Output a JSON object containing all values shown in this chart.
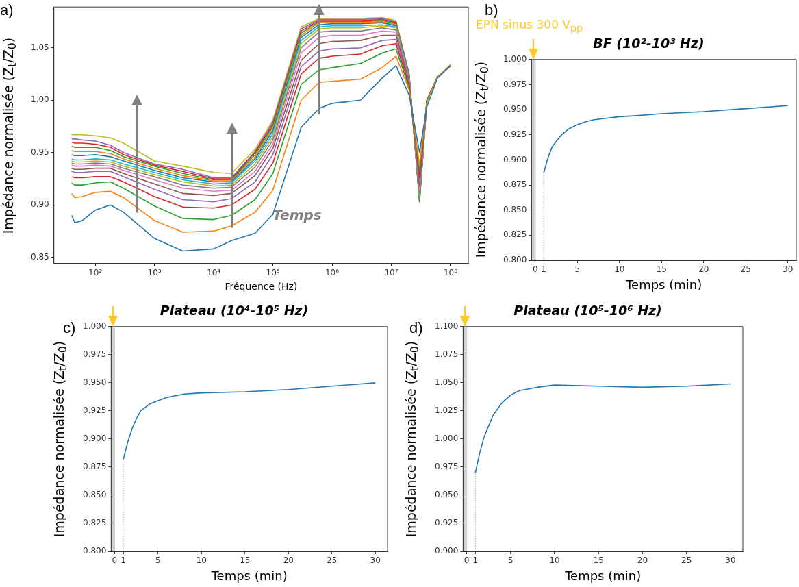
{
  "chart_data": [
    {
      "type": "line",
      "annotations": [
        "a)",
        "Temps"
      ],
      "xlabel": "Fréquence (Hz)",
      "ylabel": "Impédance normalisée (Z$_{t}$/Z$_{0}$)",
      "log": "x",
      "xlim": [
        20,
        200000000
      ],
      "ylim": [
        0.844,
        1.089
      ],
      "xticks": [
        {
          "value": 100,
          "label": "10²"
        },
        {
          "value": 1000,
          "label": "10³"
        },
        {
          "value": 10000,
          "label": "10⁴"
        },
        {
          "value": 100000,
          "label": "10⁵"
        },
        {
          "value": 1000000,
          "label": "10⁶"
        },
        {
          "value": 10000000,
          "label": "10⁷"
        },
        {
          "value": 100000000,
          "label": "10⁸"
        }
      ],
      "yticks": [
        0.85,
        {
          "value": 0.9,
          "label": "0.90"
        },
        0.95,
        {
          "value": 1.0,
          "label": "1.00"
        },
        1.05
      ],
      "x": [
        40,
        45,
        60,
        100,
        180,
        300,
        1000,
        3000,
        10000,
        20000,
        50000,
        100000,
        300000,
        600000,
        1000000,
        3000000,
        7000000,
        12000000,
        20000000,
        30000000,
        40000000,
        60000000,
        100000000
      ],
      "series": [
        {
          "color": "#1f77b4",
          "values": [
            0.89,
            0.883,
            0.885,
            0.895,
            0.9,
            0.893,
            0.868,
            0.856,
            0.858,
            0.866,
            0.873,
            0.891,
            0.974,
            0.992,
            0.997,
            1.0,
            1.021,
            1.033,
            1.005,
            0.95,
            0.994,
            1.021,
            1.033
          ]
        },
        {
          "color": "#ff7f0e",
          "values": [
            0.911,
            0.907,
            0.908,
            0.912,
            0.913,
            0.907,
            0.885,
            0.874,
            0.875,
            0.88,
            0.893,
            0.914,
            1.0,
            1.017,
            1.018,
            1.02,
            1.031,
            1.042,
            1.01,
            0.938,
            0.998,
            1.022,
            1.034
          ]
        },
        {
          "color": "#2ca02c",
          "values": [
            0.921,
            0.919,
            0.919,
            0.921,
            0.922,
            0.916,
            0.899,
            0.887,
            0.886,
            0.89,
            0.905,
            0.93,
            1.015,
            1.029,
            1.031,
            1.035,
            1.045,
            1.049,
            1.012,
            0.932,
            1.0,
            1.022,
            1.033
          ]
        },
        {
          "color": "#d62728",
          "values": [
            0.927,
            0.926,
            0.926,
            0.927,
            0.927,
            0.922,
            0.908,
            0.898,
            0.897,
            0.9,
            0.915,
            0.94,
            1.025,
            1.04,
            1.042,
            1.044,
            1.052,
            1.054,
            1.014,
            0.926,
            1.0,
            null,
            null
          ]
        },
        {
          "color": "#9467bd",
          "values": [
            0.932,
            0.931,
            0.931,
            0.932,
            0.932,
            0.927,
            0.915,
            0.905,
            0.903,
            0.906,
            0.922,
            0.948,
            1.032,
            1.047,
            1.049,
            1.05,
            1.057,
            1.058,
            1.016,
            0.922,
            1.0,
            1.022,
            1.033
          ]
        },
        {
          "color": "#8c564b",
          "values": [
            0.935,
            0.934,
            0.934,
            0.935,
            0.935,
            0.93,
            0.92,
            0.911,
            0.909,
            0.911,
            0.928,
            0.954,
            1.038,
            1.054,
            1.056,
            1.057,
            1.062,
            1.062,
            1.018,
            0.918,
            1.0,
            1.022,
            1.033
          ]
        },
        {
          "color": "#e377c2",
          "values": [
            0.938,
            0.937,
            0.937,
            0.938,
            0.937,
            0.933,
            0.924,
            0.916,
            0.913,
            0.914,
            0.932,
            0.958,
            1.045,
            1.06,
            1.062,
            1.062,
            1.066,
            1.065,
            1.019,
            0.915,
            1.0,
            null,
            null
          ]
        },
        {
          "color": "#7f7f7f",
          "values": [
            0.94,
            0.939,
            0.939,
            0.94,
            0.939,
            0.935,
            0.927,
            0.919,
            0.916,
            0.917,
            0.936,
            0.962,
            1.05,
            1.065,
            1.066,
            1.066,
            1.069,
            1.067,
            1.02,
            0.912,
            1.0,
            1.022,
            1.033
          ]
        },
        {
          "color": "#bcbd22",
          "values": [
            0.942,
            0.941,
            0.941,
            0.942,
            0.941,
            0.937,
            0.929,
            0.922,
            0.918,
            0.919,
            0.939,
            0.965,
            1.054,
            1.068,
            1.069,
            1.069,
            1.071,
            1.069,
            1.021,
            0.91,
            1.0,
            null,
            null
          ]
        },
        {
          "color": "#17becf",
          "values": [
            0.944,
            0.943,
            0.943,
            0.944,
            0.943,
            0.939,
            0.931,
            0.924,
            0.92,
            0.921,
            0.942,
            0.968,
            1.057,
            1.07,
            1.071,
            1.071,
            1.072,
            1.07,
            1.022,
            0.908,
            1.0,
            null,
            null
          ]
        },
        {
          "color": "#1f77b4",
          "values": [
            0.948,
            0.947,
            0.947,
            0.948,
            0.946,
            0.942,
            0.933,
            0.926,
            0.922,
            0.922,
            0.944,
            0.971,
            1.06,
            1.072,
            1.073,
            1.073,
            1.074,
            1.071,
            1.023,
            0.907,
            1.0,
            1.022,
            1.033
          ]
        },
        {
          "color": "#ff7f0e",
          "values": [
            0.952,
            0.951,
            0.951,
            0.951,
            0.949,
            0.944,
            0.935,
            0.928,
            0.923,
            0.923,
            0.946,
            0.973,
            1.062,
            1.074,
            1.074,
            1.074,
            1.075,
            1.072,
            1.023,
            0.906,
            1.0,
            1.022,
            1.033
          ]
        },
        {
          "color": "#2ca02c",
          "values": [
            0.956,
            0.955,
            0.955,
            0.955,
            0.952,
            0.946,
            0.937,
            0.93,
            0.924,
            0.924,
            0.948,
            0.975,
            1.064,
            1.075,
            1.075,
            1.075,
            1.076,
            1.073,
            1.024,
            0.905,
            1.0,
            1.022,
            1.033
          ]
        },
        {
          "color": "#d62728",
          "values": [
            0.96,
            0.959,
            0.959,
            0.958,
            0.955,
            0.948,
            0.938,
            0.932,
            0.925,
            0.925,
            0.95,
            0.977,
            1.066,
            1.076,
            1.076,
            1.076,
            1.077,
            1.074,
            1.024,
            0.904,
            1.0,
            null,
            null
          ]
        },
        {
          "color": "#9467bd",
          "values": [
            0.963,
            0.963,
            0.962,
            0.961,
            0.957,
            0.95,
            0.939,
            0.934,
            0.926,
            0.926,
            0.951,
            0.979,
            1.068,
            1.077,
            1.077,
            1.077,
            1.078,
            1.075,
            1.025,
            0.903,
            1.0,
            1.022,
            1.033
          ]
        },
        {
          "color": "#bcbd22",
          "values": [
            0.967,
            0.967,
            0.967,
            0.966,
            0.964,
            0.959,
            0.942,
            0.937,
            0.931,
            0.93,
            0.953,
            0.981,
            1.07,
            1.078,
            1.078,
            1.078,
            1.079,
            1.076,
            1.025,
            0.902,
            1.0,
            1.022,
            1.033
          ]
        }
      ]
    },
    {
      "type": "line",
      "title": "BF (10²-10³ Hz)",
      "annotations": [
        "b)",
        "EPN sinus 300 V$_{pp}$"
      ],
      "xlabel": "Temps (min)",
      "ylabel": "Impédance normalisée (Z$_{t}$/Z$_{0}$)",
      "xlim": [
        -0.45,
        31
      ],
      "ylim": [
        0.8,
        1.0
      ],
      "xticks": [
        0,
        1,
        5,
        10,
        15,
        20,
        25,
        30
      ],
      "yticks": [
        {
          "value": 0.8,
          "label": "0.800"
        },
        0.825,
        {
          "value": 0.85,
          "label": "0.850"
        },
        0.875,
        {
          "value": 0.9,
          "label": "0.900"
        },
        0.925,
        {
          "value": 0.95,
          "label": "0.950"
        },
        0.975,
        {
          "value": 1.0,
          "label": "1.000"
        }
      ],
      "bands": [
        {
          "axis": "x",
          "from": -0.45,
          "to": 0.05,
          "color": "#d3d3d3"
        }
      ],
      "ref_lines": [
        {
          "axis": "x",
          "value": 1,
          "color": "#aaaaaa",
          "line_style": "dotted"
        }
      ],
      "x": [
        1,
        1.5,
        2,
        3,
        4,
        5,
        6,
        7,
        8,
        10,
        12,
        15,
        20,
        25,
        30
      ],
      "series": [
        {
          "color": "#1f77b4",
          "values": [
            0.887,
            0.902,
            0.913,
            0.924,
            0.931,
            0.935,
            0.938,
            0.94,
            0.941,
            0.943,
            0.944,
            0.946,
            0.948,
            0.951,
            0.954
          ]
        }
      ]
    },
    {
      "type": "line",
      "title": "Plateau (10⁴-10⁵ Hz)",
      "annotations": [
        "c)"
      ],
      "xlabel": "Temps (min)",
      "ylabel": "Impédance normalisée (Z$_{t}$/Z$_{0}$)",
      "xlim": [
        -0.4,
        31.4
      ],
      "ylim": [
        0.8,
        1.0
      ],
      "xticks": [
        0,
        1,
        5,
        10,
        15,
        20,
        25,
        30
      ],
      "yticks": [
        {
          "value": 0.8,
          "label": "0.800"
        },
        0.825,
        {
          "value": 0.85,
          "label": "0.850"
        },
        0.875,
        {
          "value": 0.9,
          "label": "0.900"
        },
        0.925,
        {
          "value": 0.95,
          "label": "0.950"
        },
        0.975,
        {
          "value": 1.0,
          "label": "1.000"
        }
      ],
      "bands": [
        {
          "axis": "x",
          "from": -0.4,
          "to": 0.05,
          "color": "#d3d3d3"
        }
      ],
      "ref_lines": [
        {
          "axis": "x",
          "value": 1,
          "color": "#aaaaaa",
          "line_style": "dotted"
        }
      ],
      "x": [
        1,
        1.5,
        2,
        2.5,
        3,
        4,
        5,
        6,
        8,
        10,
        15,
        20,
        25,
        30
      ],
      "series": [
        {
          "color": "#1f77b4",
          "values": [
            0.882,
            0.897,
            0.909,
            0.918,
            0.925,
            0.931,
            0.934,
            0.937,
            0.94,
            0.941,
            0.942,
            0.944,
            0.947,
            0.95
          ]
        }
      ]
    },
    {
      "type": "line",
      "title": "Plateau (10⁵-10⁶ Hz)",
      "annotations": [
        "d)"
      ],
      "xlabel": "Temps (min)",
      "ylabel": "Impédance normalisée (Z$_{t}$/Z$_{0}$)",
      "xlim": [
        -0.4,
        31.4
      ],
      "ylim": [
        0.9,
        1.1
      ],
      "xticks": [
        0,
        1,
        5,
        10,
        15,
        20,
        25,
        30
      ],
      "yticks": [
        {
          "value": 0.9,
          "label": "0.900"
        },
        0.925,
        {
          "value": 0.95,
          "label": "0.950"
        },
        0.975,
        {
          "value": 1.0,
          "label": "1.000"
        },
        1.025,
        {
          "value": 1.05,
          "label": "1.050"
        },
        1.075,
        {
          "value": 1.1,
          "label": "1.100"
        }
      ],
      "bands": [
        {
          "axis": "x",
          "from": -0.4,
          "to": 0.05,
          "color": "#d3d3d3"
        }
      ],
      "ref_lines": [
        {
          "axis": "x",
          "value": 1,
          "color": "#aaaaaa",
          "line_style": "dotted"
        }
      ],
      "x": [
        1,
        1.5,
        2,
        3,
        4,
        5,
        6,
        8,
        10,
        15,
        20,
        25,
        30
      ],
      "series": [
        {
          "color": "#1f77b4",
          "values": [
            0.97,
            0.988,
            1.002,
            1.021,
            1.032,
            1.039,
            1.043,
            1.046,
            1.048,
            1.047,
            1.046,
            1.047,
            1.049
          ]
        }
      ]
    }
  ]
}
